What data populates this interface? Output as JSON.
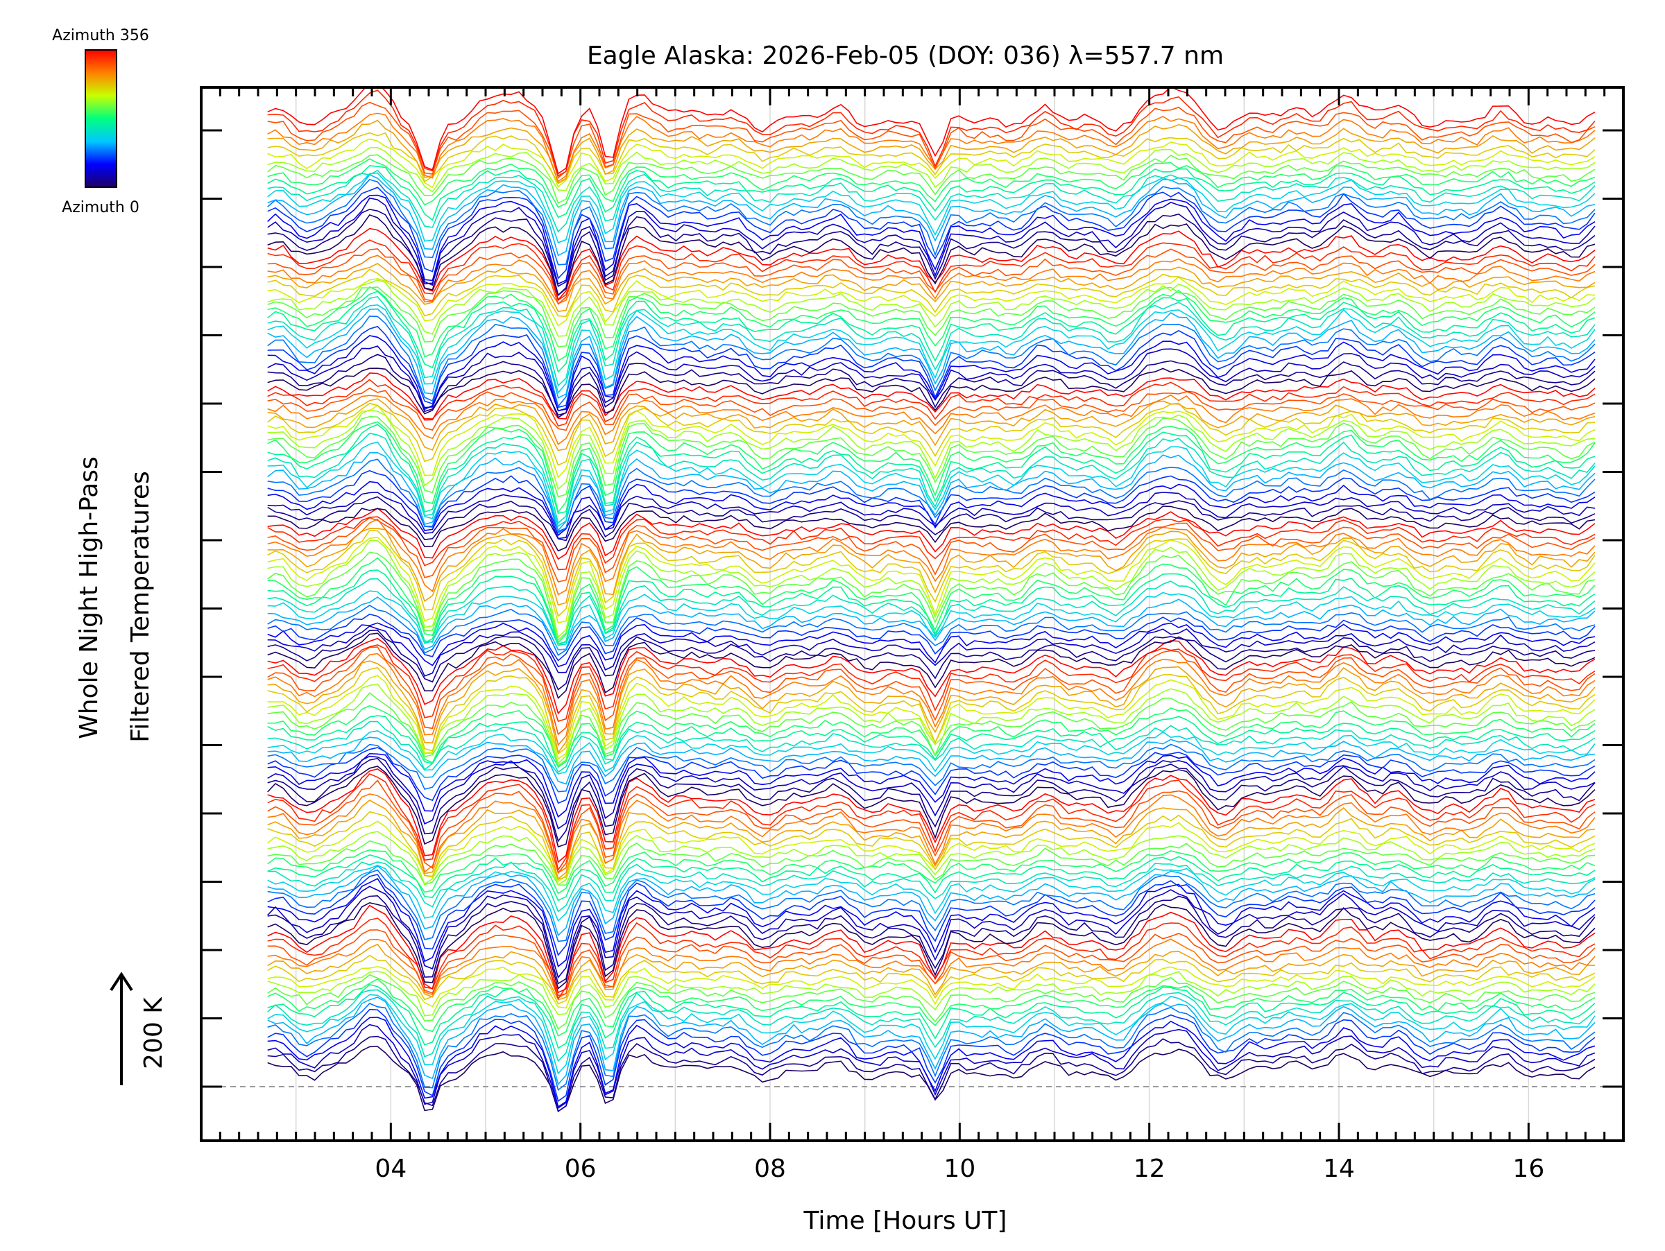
{
  "chart_data": {
    "type": "line",
    "title": "Eagle Alaska: 2026-Feb-05 (DOY: 036) λ=557.7 nm",
    "xlabel": "Time [Hours UT]",
    "ylabel_line1": "Whole Night High-Pass",
    "ylabel_line2": "Filtered Temperatures",
    "x_range_hours": [
      2.0,
      17.0
    ],
    "x_data_range_hours": [
      2.7,
      16.7
    ],
    "x_ticks": [
      {
        "value": 4,
        "label": "04"
      },
      {
        "value": 6,
        "label": "06"
      },
      {
        "value": 8,
        "label": "08"
      },
      {
        "value": 10,
        "label": "10"
      },
      {
        "value": 12,
        "label": "12"
      },
      {
        "value": 14,
        "label": "14"
      },
      {
        "value": 16,
        "label": "16"
      }
    ],
    "scale_bar_label": "200 K",
    "colorbar": {
      "top_label": "Azimuth 356",
      "bottom_label": "Azimuth 0",
      "azimuth_range": [
        0,
        356
      ],
      "colormap": [
        "#1e0064",
        "#0000ff",
        "#00c8ff",
        "#00ff80",
        "#c8ff00",
        "#ff8000",
        "#ff0000"
      ]
    },
    "grid": true,
    "legend": "none",
    "stacked_groups": 7,
    "traces_per_group": 20,
    "common_features": [
      {
        "time_hours": 3.75,
        "kind": "peak"
      },
      {
        "time_hours": 4.4,
        "kind": "trough"
      },
      {
        "time_hours": 5.3,
        "kind": "peak"
      },
      {
        "time_hours": 5.8,
        "kind": "trough"
      },
      {
        "time_hours": 6.3,
        "kind": "trough"
      },
      {
        "time_hours": 6.7,
        "kind": "peak"
      },
      {
        "time_hours": 9.75,
        "kind": "trough"
      },
      {
        "time_hours": 12.25,
        "kind": "peak"
      },
      {
        "time_hours": 14.0,
        "kind": "peak"
      }
    ]
  }
}
